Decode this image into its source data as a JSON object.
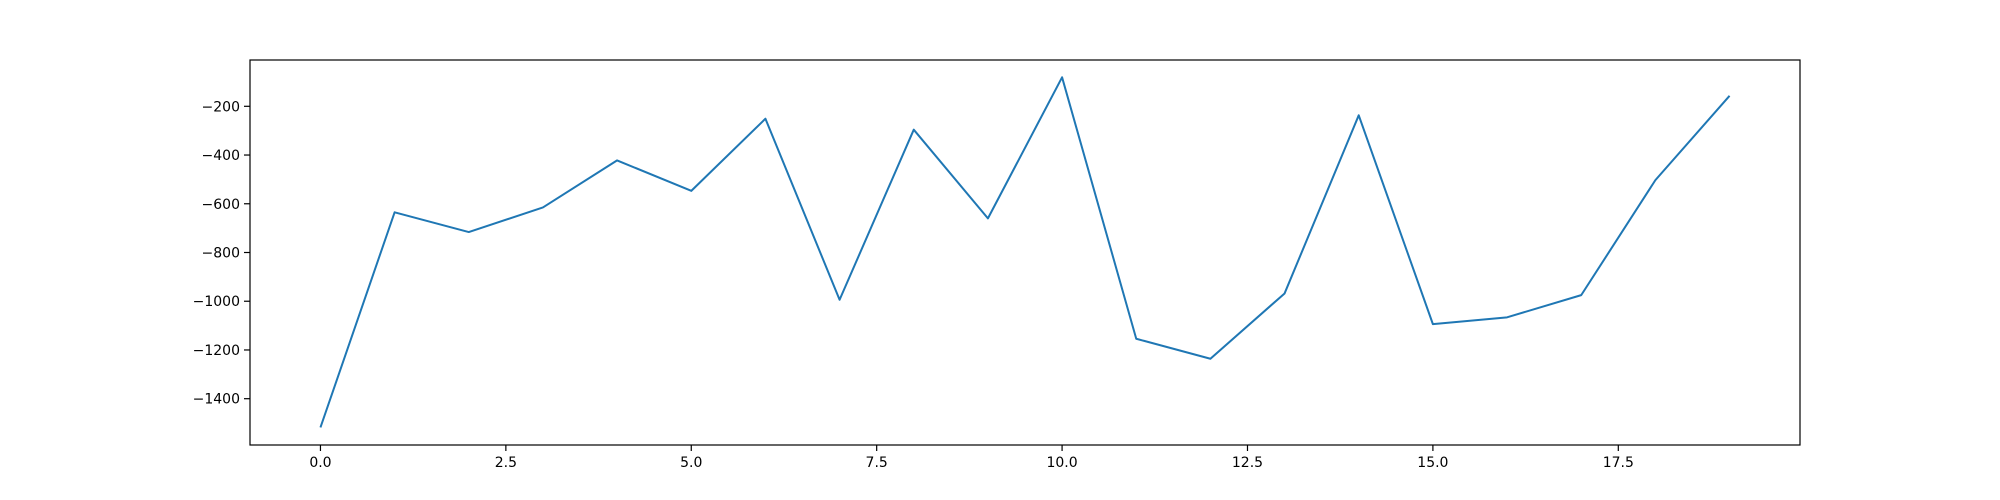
{
  "chart_data": {
    "type": "line",
    "title": "",
    "xlabel": "",
    "ylabel": "",
    "xlim": [
      -0.95,
      19.95
    ],
    "ylim": [
      -1590,
      -10
    ],
    "grid": false,
    "x_ticks": [
      0.0,
      2.5,
      5.0,
      7.5,
      10.0,
      12.5,
      15.0,
      17.5
    ],
    "x_tick_labels": [
      "0.0",
      "2.5",
      "5.0",
      "7.5",
      "10.0",
      "12.5",
      "15.0",
      "17.5"
    ],
    "y_ticks": [
      -1400,
      -1200,
      -1000,
      -800,
      -600,
      -400,
      -200
    ],
    "y_tick_labels": [
      "−1400",
      "−1200",
      "−1000",
      "−800",
      "−600",
      "−400",
      "−200"
    ],
    "series": [
      {
        "color": "#1f77b4",
        "x": [
          0,
          1,
          2,
          3,
          4,
          5,
          6,
          7,
          8,
          9,
          10,
          11,
          12,
          13,
          14,
          15,
          16,
          17,
          18,
          19
        ],
        "values": [
          -1518,
          -635,
          -716,
          -615,
          -422,
          -547,
          -251,
          -994,
          -296,
          -660,
          -81,
          -1154,
          -1236,
          -968,
          -237,
          -1094,
          -1066,
          -975,
          -503,
          -157
        ]
      }
    ]
  }
}
